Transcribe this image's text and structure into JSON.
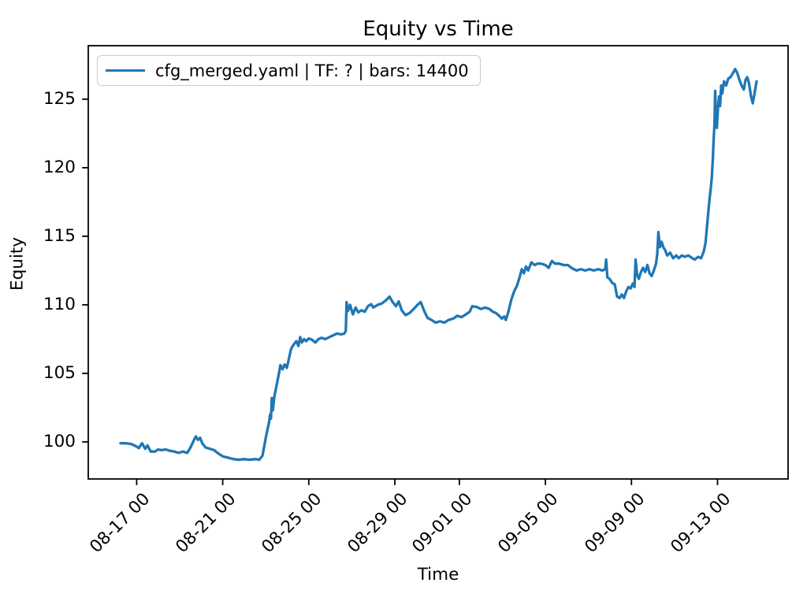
{
  "chart_data": {
    "type": "line",
    "title": "Equity vs Time",
    "xlabel": "Time",
    "ylabel": "Equity",
    "grid": false,
    "background": "#ffffff",
    "line_color": "#1f77b4",
    "legend": {
      "position": "upper left",
      "entries": [
        {
          "label": "cfg_merged.yaml | TF: ? | bars: 14400",
          "color": "#1f77b4"
        }
      ]
    },
    "x_axis_note": "x measured in days, 0 = 08-16 00:00",
    "xlim": [
      -1.25,
      31.28
    ],
    "ylim": [
      97.3,
      128.9
    ],
    "xticks": [
      {
        "t": 1,
        "label": "08-17 00"
      },
      {
        "t": 5,
        "label": "08-21 00"
      },
      {
        "t": 9,
        "label": "08-25 00"
      },
      {
        "t": 13,
        "label": "08-29 00"
      },
      {
        "t": 16,
        "label": "09-01 00"
      },
      {
        "t": 20,
        "label": "09-05 00"
      },
      {
        "t": 24,
        "label": "09-09 00"
      },
      {
        "t": 28,
        "label": "09-13 00"
      }
    ],
    "yticks": [
      100,
      105,
      110,
      115,
      120,
      125
    ],
    "series": [
      {
        "name": "cfg_merged.yaml | TF: ? | bars: 14400",
        "points": [
          [
            0.25,
            99.9
          ],
          [
            0.5,
            99.9
          ],
          [
            0.75,
            99.85
          ],
          [
            0.95,
            99.7
          ],
          [
            1.1,
            99.55
          ],
          [
            1.25,
            99.9
          ],
          [
            1.4,
            99.5
          ],
          [
            1.5,
            99.75
          ],
          [
            1.65,
            99.3
          ],
          [
            1.85,
            99.3
          ],
          [
            2.0,
            99.45
          ],
          [
            2.15,
            99.4
          ],
          [
            2.35,
            99.45
          ],
          [
            2.55,
            99.35
          ],
          [
            2.75,
            99.3
          ],
          [
            2.95,
            99.2
          ],
          [
            3.15,
            99.3
          ],
          [
            3.35,
            99.2
          ],
          [
            3.5,
            99.6
          ],
          [
            3.65,
            100.1
          ],
          [
            3.75,
            100.4
          ],
          [
            3.85,
            100.15
          ],
          [
            3.95,
            100.3
          ],
          [
            4.05,
            99.9
          ],
          [
            4.2,
            99.6
          ],
          [
            4.4,
            99.5
          ],
          [
            4.6,
            99.4
          ],
          [
            4.8,
            99.15
          ],
          [
            5.0,
            98.95
          ],
          [
            5.25,
            98.85
          ],
          [
            5.5,
            98.75
          ],
          [
            5.75,
            98.7
          ],
          [
            6.0,
            98.75
          ],
          [
            6.25,
            98.7
          ],
          [
            6.5,
            98.75
          ],
          [
            6.7,
            98.7
          ],
          [
            6.85,
            99.0
          ],
          [
            6.92,
            99.6
          ],
          [
            7.0,
            100.3
          ],
          [
            7.08,
            100.9
          ],
          [
            7.15,
            101.4
          ],
          [
            7.2,
            102.0
          ],
          [
            7.24,
            101.7
          ],
          [
            7.28,
            103.2
          ],
          [
            7.33,
            102.3
          ],
          [
            7.4,
            103.3
          ],
          [
            7.5,
            104.1
          ],
          [
            7.6,
            104.9
          ],
          [
            7.68,
            105.6
          ],
          [
            7.78,
            105.3
          ],
          [
            7.88,
            105.65
          ],
          [
            7.98,
            105.4
          ],
          [
            8.08,
            106.1
          ],
          [
            8.18,
            106.8
          ],
          [
            8.3,
            107.1
          ],
          [
            8.42,
            107.35
          ],
          [
            8.52,
            107.0
          ],
          [
            8.6,
            107.65
          ],
          [
            8.68,
            107.25
          ],
          [
            8.78,
            107.5
          ],
          [
            8.88,
            107.35
          ],
          [
            9.0,
            107.55
          ],
          [
            9.15,
            107.45
          ],
          [
            9.3,
            107.25
          ],
          [
            9.45,
            107.5
          ],
          [
            9.6,
            107.6
          ],
          [
            9.75,
            107.5
          ],
          [
            9.9,
            107.6
          ],
          [
            10.1,
            107.75
          ],
          [
            10.3,
            107.9
          ],
          [
            10.5,
            107.85
          ],
          [
            10.65,
            107.9
          ],
          [
            10.72,
            108.1
          ],
          [
            10.76,
            110.2
          ],
          [
            10.82,
            109.55
          ],
          [
            10.92,
            110.0
          ],
          [
            11.05,
            109.3
          ],
          [
            11.18,
            109.8
          ],
          [
            11.3,
            109.45
          ],
          [
            11.45,
            109.6
          ],
          [
            11.6,
            109.5
          ],
          [
            11.75,
            109.9
          ],
          [
            11.9,
            110.05
          ],
          [
            12.0,
            109.8
          ],
          [
            12.2,
            110.0
          ],
          [
            12.4,
            110.1
          ],
          [
            12.6,
            110.35
          ],
          [
            12.75,
            110.6
          ],
          [
            12.9,
            110.2
          ],
          [
            13.05,
            109.9
          ],
          [
            13.18,
            110.25
          ],
          [
            13.32,
            109.6
          ],
          [
            13.5,
            109.25
          ],
          [
            13.68,
            109.4
          ],
          [
            13.88,
            109.7
          ],
          [
            14.05,
            110.0
          ],
          [
            14.2,
            110.2
          ],
          [
            14.38,
            109.5
          ],
          [
            14.52,
            109.05
          ],
          [
            14.7,
            108.9
          ],
          [
            14.9,
            108.7
          ],
          [
            15.1,
            108.8
          ],
          [
            15.3,
            108.7
          ],
          [
            15.5,
            108.9
          ],
          [
            15.72,
            109.0
          ],
          [
            15.9,
            109.2
          ],
          [
            16.1,
            109.1
          ],
          [
            16.3,
            109.3
          ],
          [
            16.48,
            109.5
          ],
          [
            16.6,
            109.9
          ],
          [
            16.8,
            109.85
          ],
          [
            17.0,
            109.7
          ],
          [
            17.2,
            109.8
          ],
          [
            17.4,
            109.7
          ],
          [
            17.55,
            109.5
          ],
          [
            17.7,
            109.4
          ],
          [
            17.85,
            109.2
          ],
          [
            17.98,
            109.0
          ],
          [
            18.08,
            109.15
          ],
          [
            18.16,
            108.9
          ],
          [
            18.28,
            109.5
          ],
          [
            18.42,
            110.4
          ],
          [
            18.55,
            111.0
          ],
          [
            18.68,
            111.4
          ],
          [
            18.8,
            112.0
          ],
          [
            18.9,
            112.6
          ],
          [
            19.0,
            112.3
          ],
          [
            19.1,
            112.8
          ],
          [
            19.2,
            112.5
          ],
          [
            19.35,
            113.1
          ],
          [
            19.5,
            112.9
          ],
          [
            19.62,
            113.0
          ],
          [
            19.8,
            113.0
          ],
          [
            20.0,
            112.9
          ],
          [
            20.15,
            112.7
          ],
          [
            20.3,
            113.2
          ],
          [
            20.45,
            113.0
          ],
          [
            20.65,
            113.0
          ],
          [
            20.85,
            112.9
          ],
          [
            21.05,
            112.9
          ],
          [
            21.25,
            112.65
          ],
          [
            21.45,
            112.5
          ],
          [
            21.65,
            112.6
          ],
          [
            21.85,
            112.5
          ],
          [
            22.05,
            112.6
          ],
          [
            22.25,
            112.5
          ],
          [
            22.45,
            112.6
          ],
          [
            22.65,
            112.5
          ],
          [
            22.78,
            112.6
          ],
          [
            22.82,
            113.3
          ],
          [
            22.88,
            112.0
          ],
          [
            22.98,
            111.9
          ],
          [
            23.1,
            111.6
          ],
          [
            23.22,
            111.5
          ],
          [
            23.33,
            110.6
          ],
          [
            23.45,
            110.5
          ],
          [
            23.55,
            110.75
          ],
          [
            23.65,
            110.5
          ],
          [
            23.76,
            111.0
          ],
          [
            23.86,
            111.3
          ],
          [
            23.96,
            111.2
          ],
          [
            24.06,
            111.55
          ],
          [
            24.14,
            111.3
          ],
          [
            24.19,
            113.3
          ],
          [
            24.26,
            112.2
          ],
          [
            24.34,
            111.9
          ],
          [
            24.44,
            112.4
          ],
          [
            24.54,
            112.7
          ],
          [
            24.64,
            112.4
          ],
          [
            24.74,
            112.9
          ],
          [
            24.84,
            112.3
          ],
          [
            24.94,
            112.1
          ],
          [
            25.04,
            112.5
          ],
          [
            25.14,
            113.0
          ],
          [
            25.2,
            113.7
          ],
          [
            25.25,
            115.3
          ],
          [
            25.32,
            114.2
          ],
          [
            25.4,
            114.6
          ],
          [
            25.48,
            114.2
          ],
          [
            25.56,
            114.0
          ],
          [
            25.66,
            113.6
          ],
          [
            25.8,
            113.8
          ],
          [
            25.94,
            113.4
          ],
          [
            26.08,
            113.6
          ],
          [
            26.2,
            113.4
          ],
          [
            26.34,
            113.6
          ],
          [
            26.48,
            113.5
          ],
          [
            26.64,
            113.6
          ],
          [
            26.78,
            113.45
          ],
          [
            26.94,
            113.3
          ],
          [
            27.1,
            113.5
          ],
          [
            27.24,
            113.4
          ],
          [
            27.36,
            113.9
          ],
          [
            27.44,
            114.5
          ],
          [
            27.5,
            115.5
          ],
          [
            27.56,
            116.6
          ],
          [
            27.62,
            117.6
          ],
          [
            27.68,
            118.4
          ],
          [
            27.73,
            119.2
          ],
          [
            27.78,
            120.6
          ],
          [
            27.82,
            122.0
          ],
          [
            27.86,
            123.2
          ],
          [
            27.89,
            125.6
          ],
          [
            27.93,
            123.6
          ],
          [
            27.97,
            122.9
          ],
          [
            28.02,
            124.3
          ],
          [
            28.07,
            125.2
          ],
          [
            28.12,
            124.5
          ],
          [
            28.17,
            126.0
          ],
          [
            28.22,
            125.4
          ],
          [
            28.3,
            126.3
          ],
          [
            28.4,
            126.0
          ],
          [
            28.5,
            126.5
          ],
          [
            28.6,
            126.6
          ],
          [
            28.72,
            126.9
          ],
          [
            28.82,
            127.2
          ],
          [
            28.92,
            126.9
          ],
          [
            29.02,
            126.4
          ],
          [
            29.12,
            126.0
          ],
          [
            29.22,
            125.7
          ],
          [
            29.3,
            126.4
          ],
          [
            29.38,
            126.6
          ],
          [
            29.46,
            126.2
          ],
          [
            29.56,
            125.2
          ],
          [
            29.64,
            124.7
          ],
          [
            29.72,
            125.4
          ],
          [
            29.78,
            126.0
          ],
          [
            29.82,
            126.3
          ]
        ]
      }
    ]
  }
}
